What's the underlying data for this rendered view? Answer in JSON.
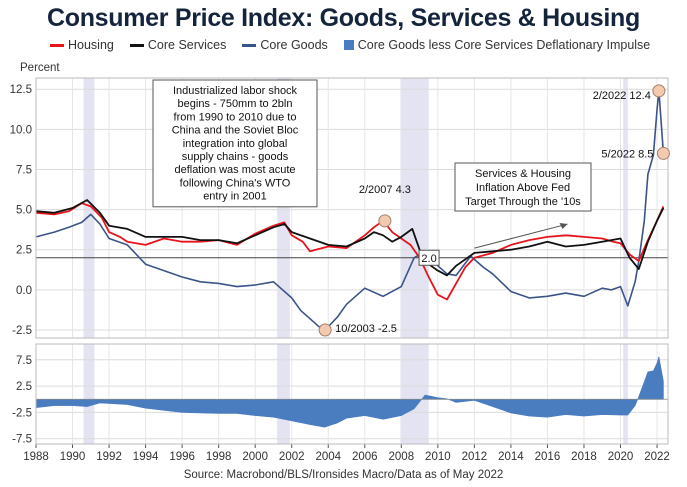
{
  "title": "Consumer Price Index: Goods, Services & Housing",
  "ylabel": "Percent",
  "source": "Source: Macrobond/BLS/Ironsides Macro/Data as of May 2022",
  "colors": {
    "housing": "#e8141c",
    "core_services": "#111111",
    "core_goods": "#3a5488",
    "impulse": "#4a7cc0",
    "recession": "#e3e3f2",
    "marker": "#f3c9b0"
  },
  "legend": [
    {
      "label": "Housing",
      "kind": "line",
      "color": "#e8141c"
    },
    {
      "label": "Core Services",
      "kind": "line",
      "color": "#111111"
    },
    {
      "label": "Core Goods",
      "kind": "line",
      "color": "#3a5488"
    },
    {
      "label": "Core Goods less Core Services Deflationary Impulse",
      "kind": "box",
      "color": "#4a7cc0"
    }
  ],
  "chart_data": {
    "type": "line",
    "x_range": [
      1988,
      2022.6
    ],
    "x_ticks": [
      "1988",
      "1990",
      "1992",
      "1994",
      "1996",
      "1998",
      "2000",
      "2002",
      "2004",
      "2006",
      "2008",
      "2010",
      "2012",
      "2014",
      "2016",
      "2018",
      "2020",
      "2022"
    ],
    "top_panel": {
      "ylim": [
        -3.0,
        13.2
      ],
      "y_ticks": [
        "12.5",
        "10.0",
        "7.5",
        "5.0",
        "2.5",
        "0.0",
        "-2.5"
      ],
      "series": [
        {
          "name": "Housing",
          "color": "#e8141c",
          "x": [
            1988,
            1989,
            1989.8,
            1990.5,
            1991,
            1991.6,
            1992,
            1992.6,
            1993,
            1994,
            1995,
            1996,
            1997,
            1998,
            1999,
            2000,
            2001,
            2001.6,
            2002,
            2002.6,
            2003,
            2004,
            2005,
            2006,
            2006.5,
            2007,
            2007.5,
            2008,
            2008.5,
            2009,
            2009.5,
            2010,
            2010.5,
            2011,
            2011.5,
            2012,
            2013,
            2014,
            2015,
            2016,
            2017,
            2018,
            2019,
            2019.6,
            2020,
            2020.5,
            2021,
            2021.5,
            2022,
            2022.35
          ],
          "y": [
            4.8,
            4.7,
            4.9,
            5.4,
            5.2,
            4.5,
            3.6,
            3.3,
            3.0,
            2.8,
            3.2,
            3.0,
            3.0,
            3.1,
            2.8,
            3.5,
            4.0,
            4.2,
            3.4,
            3.0,
            2.4,
            2.7,
            2.6,
            3.4,
            3.9,
            4.3,
            3.6,
            3.2,
            2.8,
            2.0,
            0.8,
            -0.3,
            -0.6,
            0.4,
            1.4,
            2.0,
            2.3,
            2.8,
            3.1,
            3.3,
            3.4,
            3.3,
            3.2,
            3.0,
            2.9,
            2.2,
            1.8,
            3.1,
            4.3,
            5.2
          ]
        },
        {
          "name": "Core Services",
          "color": "#111111",
          "x": [
            1988,
            1989,
            1990,
            1990.8,
            1991.5,
            1992,
            1993,
            1994,
            1995,
            1996,
            1997,
            1998,
            1999,
            2000,
            2001,
            2001.6,
            2002,
            2003,
            2004,
            2005,
            2006,
            2006.5,
            2007,
            2007.5,
            2008,
            2008.6,
            2009,
            2009.5,
            2010,
            2010.5,
            2011,
            2012,
            2013,
            2014,
            2015,
            2016,
            2017,
            2018,
            2019,
            2020,
            2020.5,
            2021,
            2021.5,
            2022,
            2022.35
          ],
          "y": [
            4.9,
            4.8,
            5.1,
            5.6,
            4.8,
            4.0,
            3.8,
            3.3,
            3.3,
            3.3,
            3.1,
            3.1,
            2.9,
            3.4,
            3.9,
            4.1,
            3.6,
            3.2,
            2.8,
            2.7,
            3.2,
            3.6,
            3.4,
            3.0,
            3.3,
            3.8,
            2.5,
            1.6,
            1.2,
            0.9,
            1.5,
            2.3,
            2.4,
            2.5,
            2.7,
            3.0,
            2.7,
            2.8,
            3.0,
            3.2,
            2.0,
            1.3,
            3.0,
            4.3,
            5.1
          ]
        },
        {
          "name": "Core Goods",
          "color": "#3a5488",
          "x": [
            1988,
            1989,
            1989.8,
            1990.5,
            1991,
            1991.5,
            1992,
            1993,
            1994,
            1995,
            1996,
            1997,
            1998,
            1999,
            2000,
            2001,
            2002,
            2002.5,
            2003,
            2003.5,
            2003.83,
            2004.5,
            2005,
            2006,
            2007,
            2008,
            2008.7,
            2009.3,
            2010,
            2010.5,
            2011,
            2011.8,
            2012.5,
            2013,
            2014,
            2015,
            2016,
            2017,
            2018,
            2019,
            2019.5,
            2020,
            2020.4,
            2020.8,
            2021,
            2021.3,
            2021.5,
            2021.8,
            2022,
            2022.1,
            2022.35
          ],
          "y": [
            3.3,
            3.6,
            3.9,
            4.2,
            4.7,
            4.1,
            3.2,
            2.8,
            1.6,
            1.2,
            0.8,
            0.5,
            0.4,
            0.2,
            0.3,
            0.5,
            -0.5,
            -1.3,
            -1.8,
            -2.3,
            -2.5,
            -1.7,
            -0.9,
            0.1,
            -0.4,
            0.2,
            2.0,
            2.4,
            1.5,
            1.0,
            0.9,
            2.1,
            1.4,
            1.0,
            -0.1,
            -0.5,
            -0.4,
            -0.2,
            -0.4,
            0.1,
            0.0,
            0.2,
            -1.0,
            0.5,
            1.8,
            4.3,
            7.2,
            8.4,
            11.2,
            12.4,
            8.5
          ]
        }
      ],
      "reference_line": 2.0
    },
    "bottom_panel": {
      "ylim": [
        -8.5,
        10.5
      ],
      "y_ticks": [
        "7.5",
        "2.5",
        "-2.5",
        "-7.5"
      ],
      "series": [
        {
          "name": "Core Goods less Core Services Deflationary Impulse",
          "type": "area",
          "color": "#4a7cc0",
          "x": [
            1988,
            1989,
            1990,
            1990.8,
            1991.5,
            1992,
            1993,
            1994,
            1995,
            1996,
            1997,
            1998,
            1999,
            2000,
            2001,
            2002,
            2003,
            2003.8,
            2004.5,
            2005,
            2006,
            2007,
            2008,
            2008.7,
            2009.3,
            2010,
            2010.5,
            2011,
            2012,
            2013,
            2014,
            2015,
            2016,
            2017,
            2018,
            2019,
            2020,
            2020.4,
            2020.8,
            2021,
            2021.3,
            2021.5,
            2021.8,
            2022,
            2022.1,
            2022.35
          ],
          "y": [
            -1.6,
            -1.2,
            -1.2,
            -1.4,
            -0.7,
            -0.8,
            -1.0,
            -1.7,
            -2.1,
            -2.5,
            -2.6,
            -2.7,
            -2.7,
            -3.1,
            -3.4,
            -4.1,
            -4.8,
            -5.3,
            -4.5,
            -3.6,
            -3.1,
            -3.8,
            -3.1,
            -1.8,
            0.8,
            0.3,
            0.1,
            -0.6,
            -0.2,
            -1.4,
            -2.6,
            -3.2,
            -3.4,
            -2.9,
            -3.2,
            -2.9,
            -3.0,
            -3.0,
            -1.2,
            0.5,
            3.3,
            5.2,
            5.4,
            6.9,
            8.1,
            3.4
          ]
        }
      ]
    },
    "recessions": [
      [
        1990.6,
        1991.2
      ],
      [
        2001.2,
        2001.9
      ],
      [
        2007.95,
        2009.5
      ],
      [
        2020.15,
        2020.4
      ]
    ],
    "annotations": [
      {
        "text": "2/2022 12.4",
        "x": 2022.1,
        "y": 12.4,
        "marker": true
      },
      {
        "text": "5/2022 8.5",
        "x": 2022.35,
        "y": 8.5,
        "marker": true
      },
      {
        "text": "2/2007 4.3",
        "x": 2007.1,
        "y": 4.3,
        "marker": true
      },
      {
        "text": "10/2003 -2.5",
        "x": 2003.83,
        "y": -2.5,
        "marker": true
      },
      {
        "text": "2.0",
        "x": 2009.3,
        "y": 2.0,
        "marker": false
      }
    ],
    "callouts": {
      "labor_shock": [
        "Industrialized labor shock",
        "begins - 750mm to 2bln",
        "from 1990 to 2010 due to",
        "China and the Soviet Bloc",
        "integration into global",
        "supply chains - goods",
        "deflation was most acute",
        "following China's WTO",
        "entry in 2001"
      ],
      "services_housing": [
        "Services & Housing",
        "Inflation Above Fed",
        "Target Through the '10s"
      ]
    }
  }
}
